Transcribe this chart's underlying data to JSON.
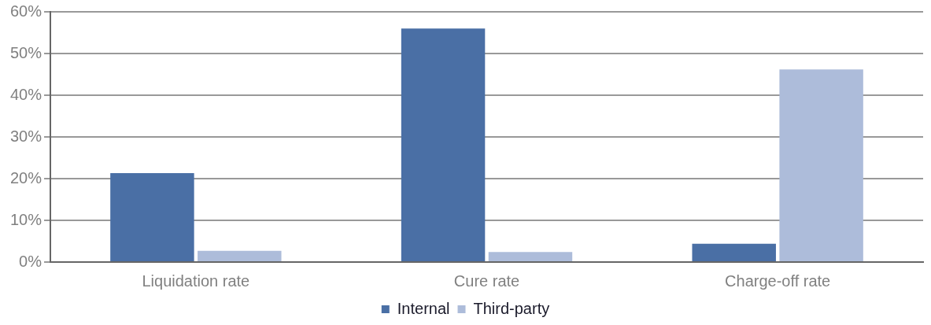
{
  "chart_data": {
    "type": "bar",
    "categories": [
      "Liquidation rate",
      "Cure rate",
      "Charge-off rate"
    ],
    "series": [
      {
        "name": "Internal",
        "color": "#4a6fa5",
        "values": [
          21.3,
          56.0,
          4.4
        ]
      },
      {
        "name": "Third-party",
        "color": "#adbcda",
        "values": [
          2.7,
          2.4,
          46.2
        ]
      }
    ],
    "ylim": [
      0,
      60
    ],
    "yticks": [
      {
        "value": 0,
        "label": "0%"
      },
      {
        "value": 10,
        "label": "10%"
      },
      {
        "value": 20,
        "label": "20%"
      },
      {
        "value": 30,
        "label": "30%"
      },
      {
        "value": 40,
        "label": "40%"
      },
      {
        "value": 50,
        "label": "50%"
      },
      {
        "value": 60,
        "label": "60%"
      }
    ],
    "grid": "y",
    "legend": "bottom"
  }
}
